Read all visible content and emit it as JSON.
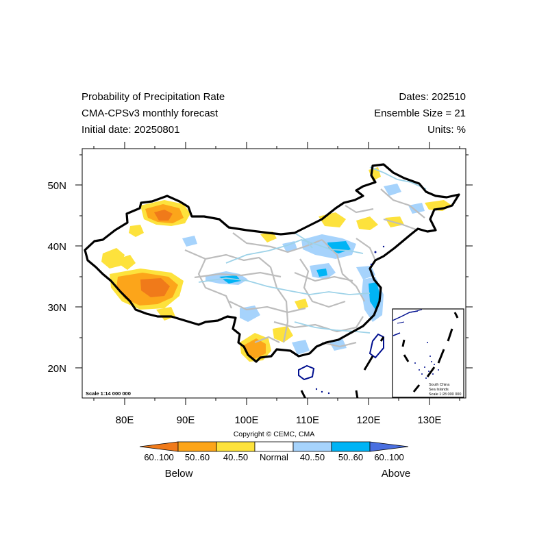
{
  "header": {
    "title_line1": "Probability of Precipitation Rate",
    "title_line2": "CMA-CPSv3 monthly forecast",
    "title_line3": "Initial date: 20250801",
    "dates": "Dates: 202510",
    "ensemble": "Ensemble Size = 21",
    "units": "Units: %"
  },
  "axes": {
    "lon_labels": [
      "80E",
      "90E",
      "100E",
      "110E",
      "120E",
      "130E"
    ],
    "lat_labels": [
      "50N",
      "40N",
      "30N",
      "20N"
    ]
  },
  "map": {
    "scale_main": "Scale 1:14 000 000",
    "inset_line1": "South China",
    "inset_line2": "Sea Islands",
    "inset_scale": "Scale 1:28 000 000",
    "copyright": "Copyright © CEMC, CMA"
  },
  "legend": {
    "labels": [
      "60..100",
      "50..60",
      "40..50",
      "Normal",
      "40..50",
      "50..60",
      "60..100"
    ],
    "colors": [
      "#f07a1a",
      "#fca51a",
      "#fde23c",
      "#ffffff",
      "#a6d3fc",
      "#00b4f5",
      "#4a6fe0"
    ],
    "below_label": "Below",
    "above_label": "Above"
  },
  "colors": {
    "boundary": "#000000",
    "province": "#bdbdbd",
    "river": "#9dd2e8",
    "coast": "#000f8f"
  }
}
